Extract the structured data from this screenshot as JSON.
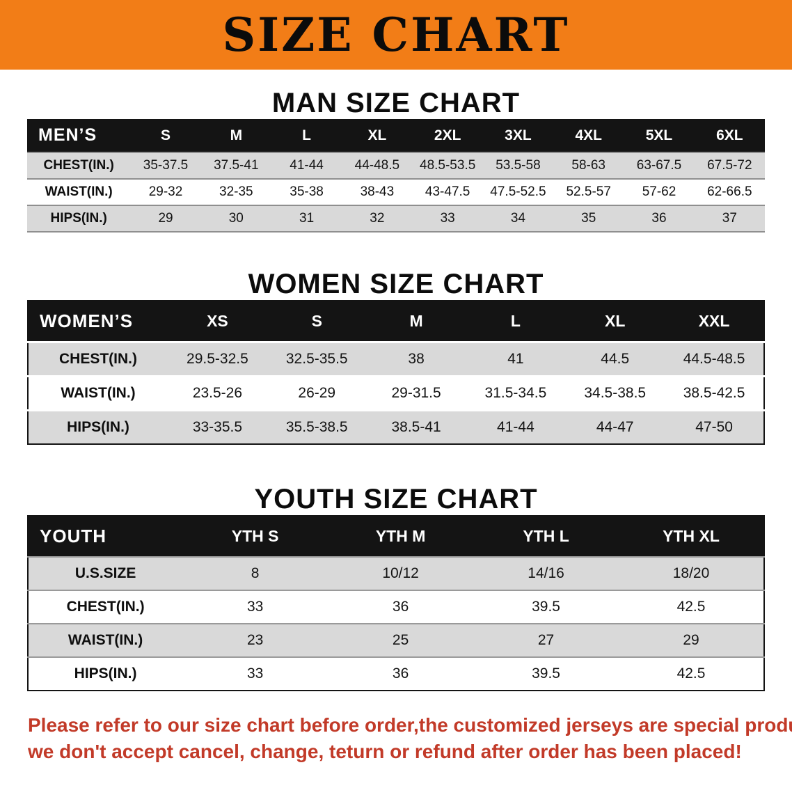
{
  "banner": {
    "title": "SIZE CHART"
  },
  "chart_data": [
    {
      "type": "table",
      "title": "MAN SIZE CHART",
      "corner_label": "MEN’S",
      "columns": [
        "S",
        "M",
        "L",
        "XL",
        "2XL",
        "3XL",
        "4XL",
        "5XL",
        "6XL"
      ],
      "rows": [
        {
          "label": "CHEST(IN.)",
          "values": [
            "35-37.5",
            "37.5-41",
            "41-44",
            "44-48.5",
            "48.5-53.5",
            "53.5-58",
            "58-63",
            "63-67.5",
            "67.5-72"
          ]
        },
        {
          "label": "WAIST(IN.)",
          "values": [
            "29-32",
            "32-35",
            "35-38",
            "38-43",
            "43-47.5",
            "47.5-52.5",
            "52.5-57",
            "57-62",
            "62-66.5"
          ]
        },
        {
          "label": "HIPS(IN.)",
          "values": [
            "29",
            "30",
            "31",
            "32",
            "33",
            "34",
            "35",
            "36",
            "37"
          ]
        }
      ]
    },
    {
      "type": "table",
      "title": "WOMEN SIZE CHART",
      "corner_label": "WOMEN’S",
      "columns": [
        "XS",
        "S",
        "M",
        "L",
        "XL",
        "XXL"
      ],
      "rows": [
        {
          "label": "CHEST(IN.)",
          "values": [
            "29.5-32.5",
            "32.5-35.5",
            "38",
            "41",
            "44.5",
            "44.5-48.5"
          ]
        },
        {
          "label": "WAIST(IN.)",
          "values": [
            "23.5-26",
            "26-29",
            "29-31.5",
            "31.5-34.5",
            "34.5-38.5",
            "38.5-42.5"
          ]
        },
        {
          "label": "HIPS(IN.)",
          "values": [
            "33-35.5",
            "35.5-38.5",
            "38.5-41",
            "41-44",
            "44-47",
            "47-50"
          ]
        }
      ]
    },
    {
      "type": "table",
      "title": "YOUTH SIZE CHART",
      "corner_label": "YOUTH",
      "columns": [
        "YTH S",
        "YTH M",
        "YTH L",
        "YTH XL"
      ],
      "rows": [
        {
          "label": "U.S.SIZE",
          "values": [
            "8",
            "10/12",
            "14/16",
            "18/20"
          ]
        },
        {
          "label": "CHEST(IN.)",
          "values": [
            "33",
            "36",
            "39.5",
            "42.5"
          ]
        },
        {
          "label": "WAIST(IN.)",
          "values": [
            "23",
            "25",
            "27",
            "29"
          ]
        },
        {
          "label": "HIPS(IN.)",
          "values": [
            "33",
            "36",
            "39.5",
            "42.5"
          ]
        }
      ]
    }
  ],
  "footer": {
    "line1": "Please refer to our size chart before order,the customized jerseys are special products,",
    "line2": "we don't accept cancel, change, teturn or refund after order has been placed!"
  },
  "colors": {
    "banner_bg": "#f27d17",
    "table_header_bg": "#141414",
    "row_alt_gray": "#d9d9d9",
    "notice_red": "#c23a28"
  }
}
